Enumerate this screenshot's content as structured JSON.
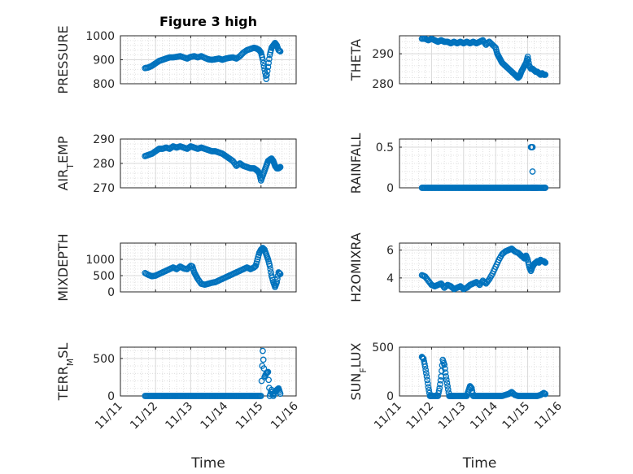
{
  "colors": {
    "marker": "#0072BD",
    "axis": "#262626",
    "grid": "#d9d9d9"
  },
  "chart_data": [
    {
      "type": "scatter",
      "title": "Figure 3 high",
      "ylabel": "PRESSURE",
      "ylabel_sub": "",
      "xlim": [
        11,
        16
      ],
      "ylim": [
        800,
        1000
      ],
      "yticks": [
        800,
        900,
        1000
      ],
      "xticks": [
        11,
        12,
        13,
        14,
        15,
        16
      ],
      "xticklabels": [],
      "xlabel": "",
      "grid": "major+minor",
      "series": [
        {
          "x": [
            11.7,
            11.8,
            11.9,
            12.0,
            12.1,
            12.2,
            12.3,
            12.4,
            12.5,
            12.6,
            12.7,
            12.8,
            12.9,
            13.0,
            13.1,
            13.2,
            13.3,
            13.4,
            13.5,
            13.6,
            13.7,
            13.8,
            13.9,
            14.0,
            14.1,
            14.2,
            14.3,
            14.4,
            14.5,
            14.6,
            14.7,
            14.8,
            14.85,
            14.9,
            14.95,
            15.0,
            15.05,
            15.1,
            15.15,
            15.2,
            15.25,
            15.3,
            15.35,
            15.4,
            15.45,
            15.5,
            15.55
          ],
          "y": [
            865,
            868,
            875,
            885,
            895,
            900,
            905,
            910,
            910,
            912,
            915,
            910,
            905,
            912,
            915,
            910,
            915,
            908,
            902,
            900,
            902,
            905,
            900,
            905,
            908,
            910,
            905,
            915,
            930,
            940,
            945,
            950,
            948,
            945,
            940,
            930,
            900,
            860,
            820,
            870,
            920,
            950,
            960,
            970,
            960,
            940,
            935
          ]
        }
      ]
    },
    {
      "type": "scatter",
      "title": "",
      "ylabel": "THETA",
      "ylabel_sub": "",
      "xlim": [
        11,
        16
      ],
      "ylim": [
        280,
        296
      ],
      "yticks": [
        280,
        290
      ],
      "xticks": [
        11,
        12,
        13,
        14,
        15,
        16
      ],
      "xticklabels": [],
      "xlabel": "",
      "grid": "major+minor",
      "series": [
        {
          "x": [
            11.7,
            11.8,
            11.9,
            12.0,
            12.1,
            12.2,
            12.3,
            12.4,
            12.5,
            12.6,
            12.7,
            12.8,
            12.9,
            13.0,
            13.1,
            13.2,
            13.3,
            13.4,
            13.5,
            13.6,
            13.7,
            13.8,
            13.9,
            14.0,
            14.05,
            14.1,
            14.15,
            14.2,
            14.3,
            14.4,
            14.5,
            14.6,
            14.65,
            14.7,
            14.75,
            14.8,
            14.85,
            14.9,
            14.95,
            15.0,
            15.05,
            15.1,
            15.15,
            15.2,
            15.25,
            15.3,
            15.35,
            15.4,
            15.45,
            15.5,
            15.55
          ],
          "y": [
            295,
            295,
            294.5,
            295,
            294.5,
            294,
            294.5,
            294,
            294,
            293.5,
            294,
            293.5,
            294,
            293.5,
            294,
            293.5,
            294,
            293.5,
            294,
            294.5,
            293,
            294,
            293,
            292,
            290,
            289,
            288,
            287,
            286,
            285,
            284,
            283,
            282.5,
            282,
            282.5,
            284,
            285,
            286,
            287,
            289,
            286,
            285,
            285,
            284.5,
            284,
            284,
            283.5,
            283,
            283.5,
            283,
            283
          ]
        }
      ]
    },
    {
      "type": "scatter",
      "title": "",
      "ylabel": "AIR",
      "ylabel_sub": "T",
      "ylabel_rest": "EMP",
      "xlim": [
        11,
        16
      ],
      "ylim": [
        270,
        290
      ],
      "yticks": [
        270,
        280,
        290
      ],
      "xticks": [
        11,
        12,
        13,
        14,
        15,
        16
      ],
      "xticklabels": [],
      "xlabel": "",
      "grid": "major+minor",
      "series": [
        {
          "x": [
            11.7,
            11.8,
            11.9,
            12.0,
            12.1,
            12.2,
            12.3,
            12.4,
            12.5,
            12.6,
            12.7,
            12.8,
            12.9,
            13.0,
            13.1,
            13.2,
            13.3,
            13.4,
            13.5,
            13.6,
            13.7,
            13.8,
            13.9,
            14.0,
            14.1,
            14.2,
            14.3,
            14.4,
            14.5,
            14.6,
            14.7,
            14.8,
            14.85,
            14.9,
            14.95,
            15.0,
            15.05,
            15.1,
            15.15,
            15.2,
            15.25,
            15.3,
            15.35,
            15.4,
            15.45,
            15.5,
            15.55
          ],
          "y": [
            283,
            283.5,
            284,
            285,
            286,
            286,
            286.5,
            286,
            287,
            286.5,
            287,
            286.5,
            286,
            287,
            286.5,
            286,
            286.5,
            286,
            285.5,
            285,
            285,
            284.5,
            284,
            283,
            282,
            281,
            279,
            280,
            279,
            278.5,
            278,
            278,
            277.5,
            277,
            276,
            273,
            275,
            277,
            279,
            281,
            281.5,
            282,
            281,
            279,
            278,
            278,
            278.5
          ]
        }
      ]
    },
    {
      "type": "scatter",
      "title": "",
      "ylabel": "RAINFALL",
      "ylabel_sub": "",
      "xlim": [
        11,
        16
      ],
      "ylim": [
        0,
        0.6
      ],
      "yticks": [
        0,
        0.5
      ],
      "xticks": [
        11,
        12,
        13,
        14,
        15,
        16
      ],
      "xticklabels": [],
      "xlabel": "",
      "grid": "major+minor",
      "series": [
        {
          "x": [
            11.7,
            11.8,
            11.9,
            12.0,
            12.1,
            12.2,
            12.3,
            12.4,
            12.5,
            12.6,
            12.7,
            12.8,
            12.9,
            13.0,
            13.1,
            13.2,
            13.3,
            13.4,
            13.5,
            13.6,
            13.7,
            13.8,
            13.9,
            14.0,
            14.1,
            14.2,
            14.3,
            14.4,
            14.5,
            14.6,
            14.7,
            14.8,
            14.9,
            15.0,
            15.1,
            15.15,
            15.2,
            15.25,
            15.3,
            15.4,
            15.5,
            15.55,
            15.1,
            15.15,
            15.15
          ],
          "y": [
            0,
            0,
            0,
            0,
            0,
            0,
            0,
            0,
            0,
            0,
            0,
            0,
            0,
            0,
            0,
            0,
            0,
            0,
            0,
            0,
            0,
            0,
            0,
            0,
            0,
            0,
            0,
            0,
            0,
            0,
            0,
            0,
            0,
            0,
            0,
            0,
            0,
            0,
            0,
            0,
            0,
            0,
            0.5,
            0.5,
            0.2
          ]
        }
      ]
    },
    {
      "type": "scatter",
      "title": "",
      "ylabel": "MIXDEPTH",
      "ylabel_sub": "",
      "xlim": [
        11,
        16
      ],
      "ylim": [
        0,
        1500
      ],
      "yticks": [
        0,
        500,
        1000
      ],
      "xticks": [
        11,
        12,
        13,
        14,
        15,
        16
      ],
      "xticklabels": [],
      "xlabel": "",
      "grid": "major+minor",
      "series": [
        {
          "x": [
            11.7,
            11.8,
            11.9,
            12.0,
            12.1,
            12.2,
            12.3,
            12.4,
            12.5,
            12.6,
            12.7,
            12.8,
            12.9,
            13.0,
            13.05,
            13.1,
            13.15,
            13.2,
            13.3,
            13.4,
            13.5,
            13.6,
            13.7,
            13.8,
            13.9,
            14.0,
            14.1,
            14.2,
            14.3,
            14.4,
            14.5,
            14.6,
            14.7,
            14.8,
            14.85,
            14.9,
            14.95,
            15.0,
            15.05,
            15.1,
            15.15,
            15.2,
            15.25,
            15.3,
            15.35,
            15.4,
            15.45,
            15.5,
            15.55
          ],
          "y": [
            580,
            520,
            480,
            500,
            550,
            600,
            650,
            700,
            750,
            700,
            780,
            720,
            700,
            800,
            780,
            600,
            500,
            400,
            250,
            220,
            250,
            280,
            300,
            350,
            400,
            450,
            500,
            550,
            600,
            650,
            700,
            750,
            700,
            750,
            800,
            1000,
            1200,
            1300,
            1350,
            1300,
            1150,
            1000,
            800,
            500,
            300,
            150,
            300,
            600,
            550
          ]
        }
      ]
    },
    {
      "type": "scatter",
      "title": "",
      "ylabel": "H2OMIXRA",
      "ylabel_sub": "",
      "xlim": [
        11,
        16
      ],
      "ylim": [
        3,
        6.5
      ],
      "yticks": [
        4,
        6
      ],
      "xticks": [
        11,
        12,
        13,
        14,
        15,
        16
      ],
      "xticklabels": [],
      "xlabel": "",
      "grid": "major+minor",
      "series": [
        {
          "x": [
            11.7,
            11.8,
            11.9,
            12.0,
            12.1,
            12.2,
            12.3,
            12.4,
            12.5,
            12.6,
            12.7,
            12.8,
            12.9,
            13.0,
            13.1,
            13.2,
            13.3,
            13.4,
            13.5,
            13.6,
            13.7,
            13.8,
            13.9,
            14.0,
            14.1,
            14.2,
            14.3,
            14.4,
            14.5,
            14.6,
            14.7,
            14.8,
            14.85,
            14.9,
            14.95,
            15.0,
            15.05,
            15.1,
            15.15,
            15.2,
            15.25,
            15.3,
            15.35,
            15.4,
            15.45,
            15.5,
            15.55
          ],
          "y": [
            4.2,
            4.1,
            3.8,
            3.5,
            3.4,
            3.5,
            3.6,
            3.3,
            3.5,
            3.4,
            3.2,
            3.3,
            3.4,
            3.2,
            3.3,
            3.5,
            3.6,
            3.7,
            3.5,
            3.8,
            3.6,
            3.9,
            4.3,
            4.8,
            5.3,
            5.7,
            5.9,
            6.0,
            6.1,
            5.9,
            5.8,
            5.6,
            5.5,
            5.4,
            5.6,
            5.3,
            4.8,
            4.5,
            4.8,
            5.0,
            5.1,
            5.2,
            5.1,
            5.3,
            5.2,
            5.2,
            5.1
          ]
        }
      ]
    },
    {
      "type": "scatter",
      "title": "",
      "ylabel": "TERR",
      "ylabel_sub": "M",
      "ylabel_rest": "SL",
      "xlim": [
        11,
        16
      ],
      "ylim": [
        0,
        650
      ],
      "yticks": [
        0,
        500
      ],
      "xticks": [
        11,
        12,
        13,
        14,
        15,
        16
      ],
      "xticklabels": [
        "11/11",
        "11/12",
        "11/13",
        "11/14",
        "11/15",
        "11/16"
      ],
      "xlabel": "Time",
      "grid": "major+minor",
      "series": [
        {
          "x": [
            11.7,
            11.8,
            11.9,
            12.0,
            12.1,
            12.2,
            12.3,
            12.4,
            12.5,
            12.6,
            12.7,
            12.8,
            12.9,
            13.0,
            13.1,
            13.2,
            13.3,
            13.4,
            13.5,
            13.6,
            13.7,
            13.8,
            13.9,
            14.0,
            14.1,
            14.2,
            14.3,
            14.4,
            14.5,
            14.6,
            14.7,
            14.8,
            14.9,
            15.0,
            15.05,
            15.1,
            15.15,
            15.2,
            15.25,
            15.3,
            15.35,
            15.4,
            15.45,
            15.5,
            15.55
          ],
          "y": [
            0,
            0,
            0,
            0,
            0,
            0,
            0,
            0,
            0,
            0,
            0,
            0,
            0,
            0,
            0,
            0,
            0,
            0,
            0,
            0,
            0,
            0,
            0,
            0,
            0,
            0,
            0,
            0,
            0,
            0,
            0,
            0,
            0,
            0,
            600,
            250,
            300,
            320,
            0,
            80,
            0,
            60,
            80,
            100,
            30
          ]
        }
      ]
    },
    {
      "type": "scatter",
      "title": "",
      "ylabel": "SUN",
      "ylabel_sub": "F",
      "ylabel_rest": "LUX",
      "xlim": [
        11,
        16
      ],
      "ylim": [
        0,
        500
      ],
      "yticks": [
        0,
        500
      ],
      "xticks": [
        11,
        12,
        13,
        14,
        15,
        16
      ],
      "xticklabels": [
        "11/11",
        "11/12",
        "11/13",
        "11/14",
        "11/15",
        "11/16"
      ],
      "xlabel": "Time",
      "grid": "major+minor",
      "series": [
        {
          "x": [
            11.7,
            11.75,
            11.8,
            11.85,
            11.9,
            11.95,
            12.0,
            12.1,
            12.2,
            12.25,
            12.3,
            12.35,
            12.4,
            12.45,
            12.5,
            12.55,
            12.6,
            12.65,
            12.7,
            12.8,
            12.9,
            13.0,
            13.1,
            13.15,
            13.2,
            13.25,
            13.3,
            13.4,
            13.5,
            13.6,
            13.7,
            13.8,
            13.9,
            14.0,
            14.1,
            14.2,
            14.3,
            14.4,
            14.5,
            14.6,
            14.7,
            14.8,
            14.9,
            15.0,
            15.1,
            15.2,
            15.3,
            15.4,
            15.5,
            15.55
          ],
          "y": [
            400,
            380,
            300,
            200,
            90,
            0,
            0,
            0,
            0,
            80,
            200,
            370,
            320,
            200,
            100,
            0,
            0,
            0,
            0,
            0,
            0,
            0,
            0,
            50,
            100,
            80,
            0,
            0,
            0,
            0,
            0,
            0,
            0,
            0,
            0,
            0,
            10,
            20,
            40,
            10,
            0,
            0,
            0,
            0,
            0,
            0,
            0,
            10,
            30,
            20
          ]
        }
      ]
    }
  ]
}
